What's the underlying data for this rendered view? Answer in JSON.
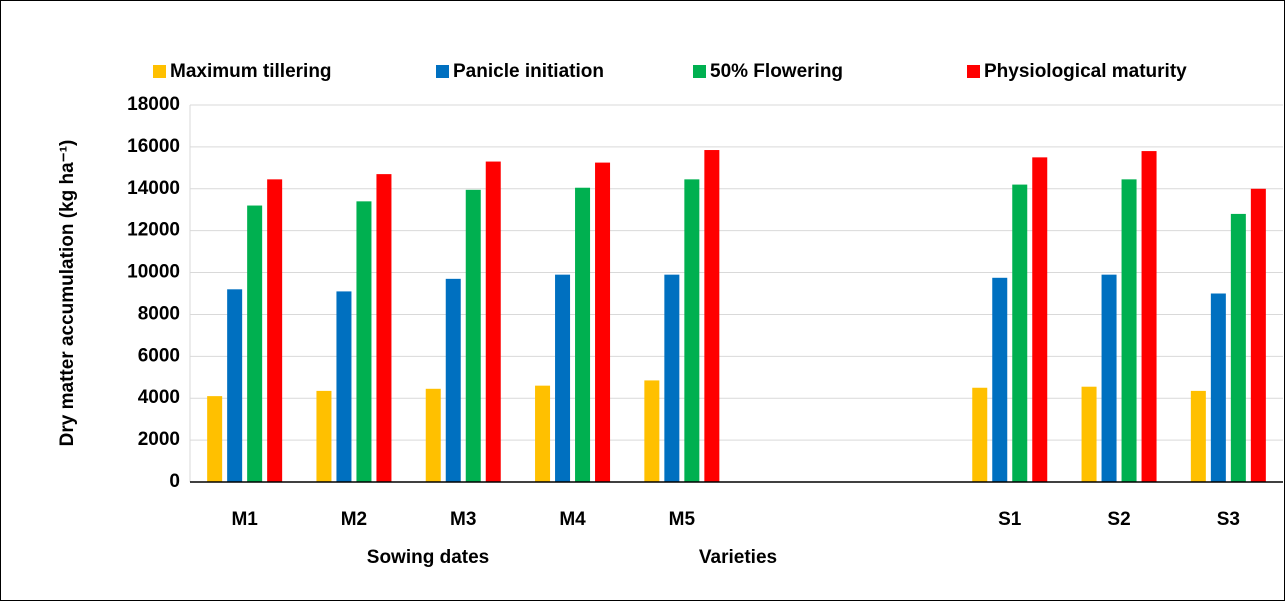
{
  "chart_data": {
    "type": "bar",
    "y_label": "Dry matter accumulation (kg ha⁻¹)",
    "categories": [
      "M1",
      "M2",
      "M3",
      "M4",
      "M5",
      null,
      null,
      "S1",
      "S2",
      "S3"
    ],
    "series": [
      {
        "name": "Maximum tillering",
        "color": "#ffc000",
        "values": [
          4100,
          4350,
          4450,
          4600,
          4850,
          null,
          null,
          4500,
          4550,
          4350
        ]
      },
      {
        "name": "Panicle initiation",
        "color": "#0070c0",
        "values": [
          9200,
          9100,
          9700,
          9900,
          9900,
          null,
          null,
          9750,
          9900,
          9000
        ]
      },
      {
        "name": "50% Flowering",
        "color": "#00b050",
        "values": [
          13200,
          13400,
          13950,
          14050,
          14450,
          null,
          null,
          14200,
          14450,
          12800
        ]
      },
      {
        "name": "Physiological maturity",
        "color": "#ff0000",
        "values": [
          14450,
          14700,
          15300,
          15250,
          15850,
          null,
          null,
          15500,
          15800,
          14000
        ]
      }
    ],
    "annotations": [
      "Sowing dates",
      "Varieties"
    ],
    "ylim": [
      0,
      18000
    ],
    "yticks": [
      0,
      2000,
      4000,
      6000,
      8000,
      10000,
      12000,
      14000,
      16000,
      18000
    ],
    "grid": true,
    "legend": "top"
  }
}
